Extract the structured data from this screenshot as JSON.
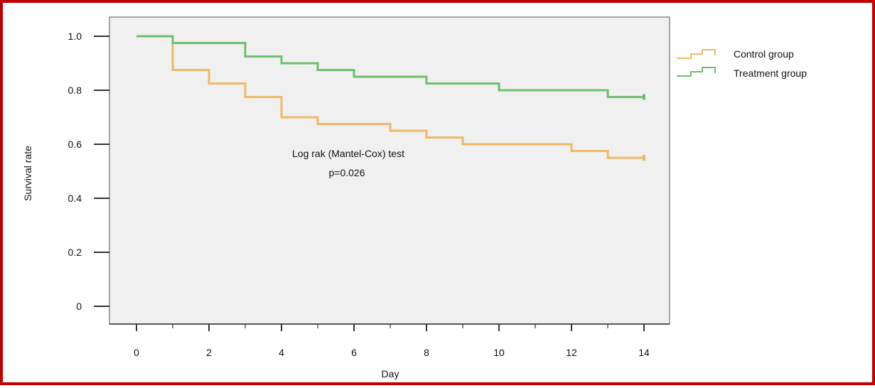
{
  "chart_data": {
    "type": "line",
    "title": "",
    "xlabel": "Day",
    "ylabel": "Survival rate",
    "xlim": [
      0,
      14
    ],
    "ylim": [
      0,
      1.0
    ],
    "x_ticks": [
      "0",
      "2",
      "4",
      "6",
      "8",
      "10",
      "12",
      "14"
    ],
    "y_ticks": [
      "0",
      "0.2",
      "0.4",
      "0.6",
      "0.8",
      "1.0"
    ],
    "grid": false,
    "legend_position": "right",
    "annotations": [
      "Log rak (Mantel-Cox) test",
      "p=0.026"
    ],
    "series": [
      {
        "name": "Control group",
        "color": "#f0b865",
        "x": [
          0,
          1,
          2,
          3,
          4,
          5,
          7,
          8,
          9,
          12,
          13,
          14
        ],
        "y": [
          1.0,
          0.875,
          0.825,
          0.775,
          0.7,
          0.675,
          0.65,
          0.625,
          0.6,
          0.575,
          0.55,
          0.55
        ]
      },
      {
        "name": "Treatment group",
        "color": "#6dbf6d",
        "x": [
          0,
          1,
          3,
          4,
          5,
          6,
          8,
          10,
          13,
          14
        ],
        "y": [
          1.0,
          0.975,
          0.925,
          0.9,
          0.875,
          0.85,
          0.825,
          0.8,
          0.775,
          0.775
        ]
      }
    ]
  }
}
